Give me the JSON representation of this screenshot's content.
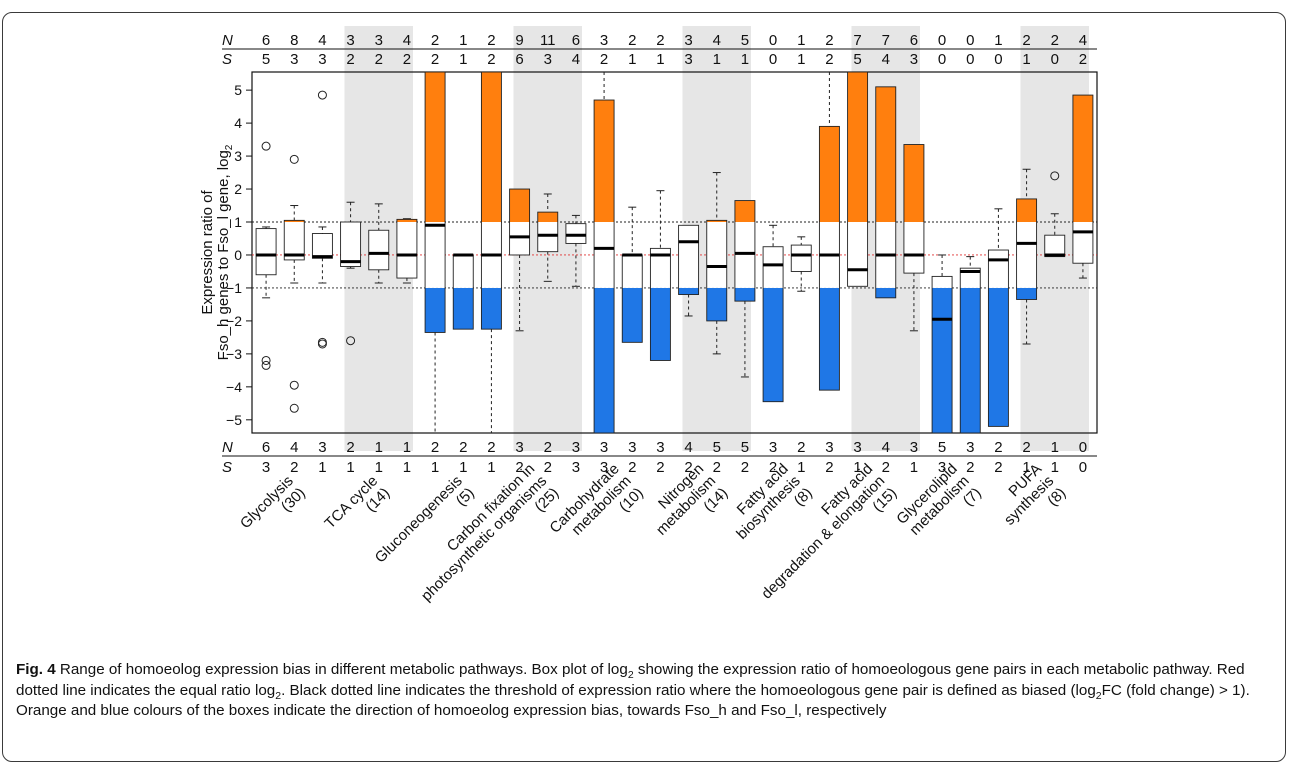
{
  "chart_data": {
    "type": "box",
    "ylabel_line1": "Expression ratio of",
    "ylabel_line2_prefix": "Fso_h genes to Fso_l gene, log",
    "ylabel_line2_sub": "2",
    "ylim": [
      -5.4,
      5.55
    ],
    "yticks": [
      "5",
      "4",
      "3",
      "2",
      "1",
      "0",
      "-1",
      "-2",
      "-3",
      "-4",
      "-5"
    ],
    "ytick_values": [
      5,
      4,
      3,
      2,
      1,
      0,
      -1,
      -2,
      -3,
      -4,
      -5
    ],
    "reference_lines": {
      "equal_ratio": 0,
      "bias_threshold": [
        1,
        -1
      ]
    },
    "colors": {
      "towards_fso_h": "#FF7F0E",
      "towards_fso_l": "#1F77E6",
      "equal_line": "#E03030",
      "shade": "#E6E6E6"
    },
    "count_labels": {
      "N": "N",
      "S": "S"
    },
    "groups": [
      {
        "label_lines": [
          "Glycolysis",
          "(30)"
        ],
        "shaded": false,
        "top_N": [
          "6",
          "8",
          "4"
        ],
        "top_S": [
          "5",
          "3",
          "3"
        ],
        "bottom_N": [
          "6",
          "4",
          "3"
        ],
        "bottom_S": [
          "3",
          "2",
          "1"
        ]
      },
      {
        "label_lines": [
          "TCA cycle",
          "(14)"
        ],
        "shaded": true,
        "top_N": [
          "3",
          "3",
          "4"
        ],
        "top_S": [
          "2",
          "2",
          "2"
        ],
        "bottom_N": [
          "2",
          "1",
          "1"
        ],
        "bottom_S": [
          "1",
          "1",
          "1"
        ]
      },
      {
        "label_lines": [
          "Gluconeogenesis",
          "(5)"
        ],
        "shaded": false,
        "top_N": [
          "2",
          "1",
          "2"
        ],
        "top_S": [
          "2",
          "1",
          "2"
        ],
        "bottom_N": [
          "2",
          "2",
          "2"
        ],
        "bottom_S": [
          "1",
          "1",
          "1"
        ]
      },
      {
        "label_lines": [
          "Carbon fixation in",
          "photosynthetic organisms",
          "(25)"
        ],
        "shaded": true,
        "top_N": [
          "9",
          "11",
          "6"
        ],
        "top_S": [
          "6",
          "3",
          "4"
        ],
        "bottom_N": [
          "3",
          "2",
          "3"
        ],
        "bottom_S": [
          "2",
          "2",
          "3"
        ]
      },
      {
        "label_lines": [
          "Carbohydrate",
          "metabolism",
          "(10)"
        ],
        "shaded": false,
        "top_N": [
          "3",
          "2",
          "2"
        ],
        "top_S": [
          "2",
          "1",
          "1"
        ],
        "bottom_N": [
          "3",
          "3",
          "3"
        ],
        "bottom_S": [
          "3",
          "2",
          "2"
        ]
      },
      {
        "label_lines": [
          "Nitrogen",
          "metabolism",
          "(14)"
        ],
        "shaded": true,
        "top_N": [
          "3",
          "4",
          "5"
        ],
        "top_S": [
          "3",
          "1",
          "1"
        ],
        "bottom_N": [
          "4",
          "5",
          "5"
        ],
        "bottom_S": [
          "2",
          "2",
          "2"
        ]
      },
      {
        "label_lines": [
          "Fatty acid",
          "biosynthesis",
          "(8)"
        ],
        "shaded": false,
        "top_N": [
          "0",
          "1",
          "2"
        ],
        "top_S": [
          "0",
          "1",
          "2"
        ],
        "bottom_N": [
          "3",
          "2",
          "3"
        ],
        "bottom_S": [
          "2",
          "1",
          "2"
        ]
      },
      {
        "label_lines": [
          "Fatty acid",
          "degradation & elongation",
          "(15)"
        ],
        "shaded": true,
        "top_N": [
          "7",
          "7",
          "6"
        ],
        "top_S": [
          "5",
          "4",
          "3"
        ],
        "bottom_N": [
          "3",
          "4",
          "3"
        ],
        "bottom_S": [
          "1",
          "2",
          "1"
        ]
      },
      {
        "label_lines": [
          "Glycerolipid",
          "metabolism",
          "(7)"
        ],
        "shaded": false,
        "top_N": [
          "0",
          "0",
          "1"
        ],
        "top_S": [
          "0",
          "0",
          "0"
        ],
        "bottom_N": [
          "5",
          "3",
          "2"
        ],
        "bottom_S": [
          "3",
          "2",
          "2"
        ]
      },
      {
        "label_lines": [
          "PUFA",
          "synthesis",
          "(8)"
        ],
        "shaded": true,
        "top_N": [
          "2",
          "2",
          "4"
        ],
        "top_S": [
          "1",
          "0",
          "2"
        ],
        "bottom_N": [
          "2",
          "1",
          "0"
        ],
        "bottom_S": [
          "1",
          "1",
          "0"
        ]
      }
    ],
    "boxes": [
      {
        "group": 0,
        "q1": -0.6,
        "median": 0,
        "q3": 0.8,
        "wlo": -1.3,
        "whi": 0.85,
        "outliers": [
          3.3,
          -3.2,
          -3.35
        ]
      },
      {
        "group": 0,
        "q1": -0.15,
        "median": 0,
        "q3": 1.05,
        "wlo": -0.85,
        "whi": 1.5,
        "outliers": [
          2.9,
          -3.95,
          -4.65
        ]
      },
      {
        "group": 0,
        "q1": -0.1,
        "median": -0.05,
        "q3": 0.65,
        "wlo": -0.85,
        "whi": 0.85,
        "outliers": [
          4.85,
          -2.65,
          -2.7
        ]
      },
      {
        "group": 1,
        "q1": -0.35,
        "median": -0.2,
        "q3": 1.0,
        "wlo": -0.4,
        "whi": 1.6,
        "outliers": [
          -2.6
        ]
      },
      {
        "group": 1,
        "q1": -0.45,
        "median": 0.05,
        "q3": 0.75,
        "wlo": -0.85,
        "whi": 1.55,
        "outliers": []
      },
      {
        "group": 1,
        "q1": -0.7,
        "median": 0,
        "q3": 1.08,
        "wlo": -0.85,
        "whi": 1.1,
        "outliers": []
      },
      {
        "group": 2,
        "q1": -2.35,
        "median": 0.9,
        "q3": 5.55,
        "wlo": -5.4,
        "whi": 5.55,
        "outliers": []
      },
      {
        "group": 2,
        "q1": -2.25,
        "median": 0,
        "q3": 0,
        "wlo": -2.25,
        "whi": 0,
        "outliers": []
      },
      {
        "group": 2,
        "q1": -2.25,
        "median": 0,
        "q3": 5.55,
        "wlo": -5.4,
        "whi": 5.55,
        "outliers": []
      },
      {
        "group": 3,
        "q1": 0,
        "median": 0.55,
        "q3": 2.0,
        "wlo": -2.3,
        "whi": 2.0,
        "outliers": []
      },
      {
        "group": 3,
        "q1": 0.1,
        "median": 0.6,
        "q3": 1.3,
        "wlo": -0.8,
        "whi": 1.85,
        "outliers": []
      },
      {
        "group": 3,
        "q1": 0.35,
        "median": 0.6,
        "q3": 0.95,
        "wlo": -0.95,
        "whi": 1.2,
        "outliers": []
      },
      {
        "group": 4,
        "q1": -5.4,
        "median": 0.2,
        "q3": 4.7,
        "wlo": -5.4,
        "whi": 5.55,
        "outliers": []
      },
      {
        "group": 4,
        "q1": -2.65,
        "median": 0,
        "q3": 0,
        "wlo": -2.65,
        "whi": 1.45,
        "outliers": []
      },
      {
        "group": 4,
        "q1": -3.2,
        "median": 0,
        "q3": 0.2,
        "wlo": -3.2,
        "whi": 1.95,
        "outliers": []
      },
      {
        "group": 5,
        "q1": -1.2,
        "median": 0.4,
        "q3": 0.9,
        "wlo": -1.85,
        "whi": 0.9,
        "outliers": []
      },
      {
        "group": 5,
        "q1": -2.0,
        "median": -0.35,
        "q3": 1.05,
        "wlo": -3.0,
        "whi": 2.5,
        "outliers": []
      },
      {
        "group": 5,
        "q1": -1.4,
        "median": 0.05,
        "q3": 1.65,
        "wlo": -3.7,
        "whi": 1.65,
        "outliers": []
      },
      {
        "group": 6,
        "q1": -4.45,
        "median": -0.3,
        "q3": 0.25,
        "wlo": -4.45,
        "whi": 0.9,
        "outliers": []
      },
      {
        "group": 6,
        "q1": -0.5,
        "median": 0,
        "q3": 0.3,
        "wlo": -1.1,
        "whi": 0.55,
        "outliers": []
      },
      {
        "group": 6,
        "q1": -4.1,
        "median": 0,
        "q3": 3.9,
        "wlo": -4.1,
        "whi": 5.55,
        "outliers": []
      },
      {
        "group": 7,
        "q1": -0.95,
        "median": -0.45,
        "q3": 5.55,
        "wlo": -0.95,
        "whi": 5.55,
        "outliers": []
      },
      {
        "group": 7,
        "q1": -1.3,
        "median": 0,
        "q3": 5.1,
        "wlo": -1.3,
        "whi": 5.1,
        "outliers": []
      },
      {
        "group": 7,
        "q1": -0.55,
        "median": 0,
        "q3": 3.35,
        "wlo": -2.3,
        "whi": 3.35,
        "outliers": []
      },
      {
        "group": 8,
        "q1": -5.4,
        "median": -1.95,
        "q3": -0.65,
        "wlo": -5.4,
        "whi": 0,
        "outliers": []
      },
      {
        "group": 8,
        "q1": -5.4,
        "median": -0.5,
        "q3": -0.4,
        "wlo": -5.4,
        "whi": -0.05,
        "outliers": []
      },
      {
        "group": 8,
        "q1": -5.2,
        "median": -0.15,
        "q3": 0.15,
        "wlo": -5.2,
        "whi": 1.4,
        "outliers": []
      },
      {
        "group": 9,
        "q1": -1.35,
        "median": 0.35,
        "q3": 1.7,
        "wlo": -2.7,
        "whi": 2.6,
        "outliers": []
      },
      {
        "group": 9,
        "q1": -0.05,
        "median": 0,
        "q3": 0.6,
        "wlo": -0.05,
        "whi": 1.25,
        "outliers": [
          2.4
        ]
      },
      {
        "group": 9,
        "q1": -0.25,
        "median": 0.7,
        "q3": 4.85,
        "wlo": -0.7,
        "whi": 4.85,
        "outliers": []
      }
    ]
  },
  "caption": {
    "fig_label": "Fig. 4",
    "t1": " Range of homoeolog expression bias in different metabolic pathways. Box plot of log",
    "t1_sub": "2",
    "t2": " showing the expression ratio of homoeologous gene pairs in each metabolic pathway. Red dotted line indicates the equal ratio log",
    "t2_sub": "2",
    "t3": ". Black dotted line indicates the threshold of expression ratio where the homoeologous gene pair is defined as biased (log",
    "t3_sub": "2",
    "t4": "FC (fold change) > 1). Orange and blue colours of the boxes indicate the direction of homoeolog expression bias, towards Fso_h and Fso_l, respectively"
  }
}
